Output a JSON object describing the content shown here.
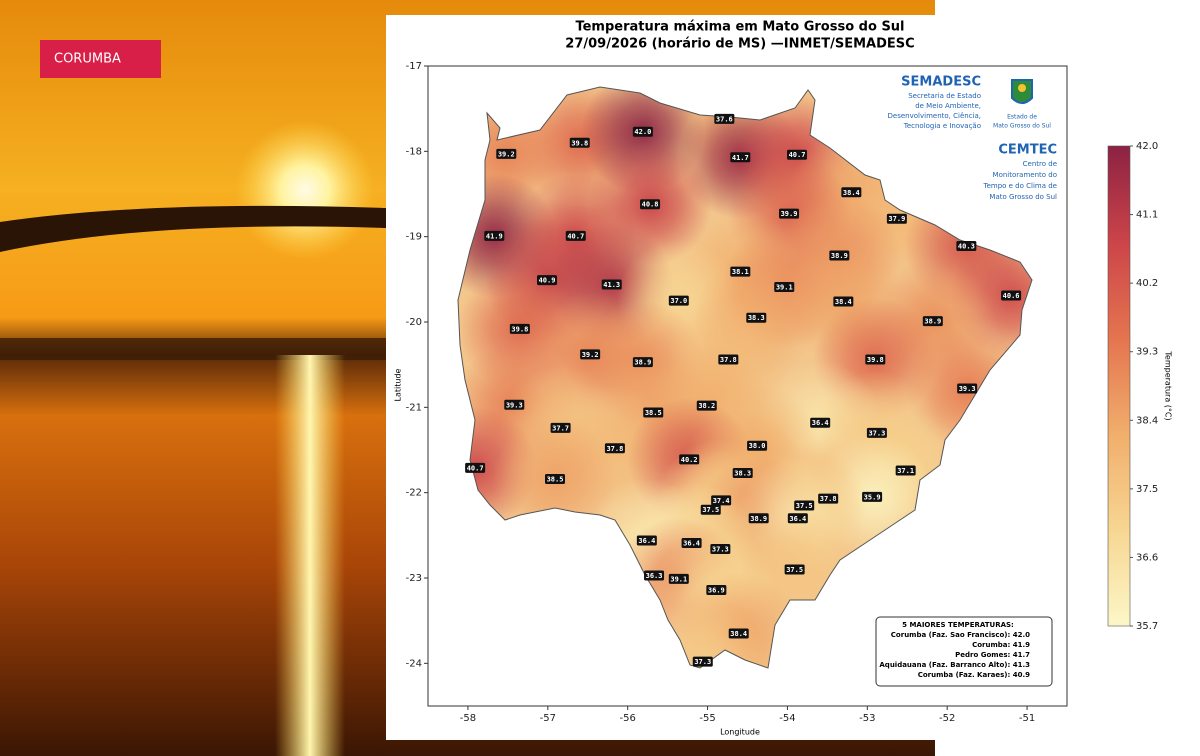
{
  "header": {
    "badge": "CORUMBA"
  },
  "logos": {
    "semadesc": {
      "name": "SEMADESC",
      "lines": [
        "Secretaria de Estado",
        "de Meio Ambiente,",
        "Desenvolvimento, Ciência,",
        "Tecnologia e Inovação"
      ]
    },
    "state": [
      "Estado de",
      "Mato Grosso do Sul"
    ],
    "cemtec": {
      "name": "CEMTEC",
      "lines": [
        "Centro de",
        "Monitoramento do",
        "Tempo e do Clima de",
        "Mato Grosso do Sul"
      ]
    }
  },
  "chart_data": {
    "type": "map",
    "title": "Temperatura máxima em Mato Grosso do Sul",
    "subtitle": "27/09/2026 (horário de MS) —INMET/SEMADESC",
    "x_label": "Longitude",
    "y_label": "Latitude",
    "xlim": [
      -58.5,
      -50.5
    ],
    "ylim": [
      -24.5,
      -17
    ],
    "xticks": [
      -58,
      -57,
      -56,
      -55,
      -54,
      -53,
      -52,
      -51
    ],
    "yticks": [
      -17,
      -18,
      -19,
      -20,
      -21,
      -22,
      -23,
      -24
    ],
    "stations": {
      "x": [
        -54.79,
        -56.6,
        -55.81,
        -57.52,
        -54.59,
        -53.88,
        -53.2,
        -55.72,
        -53.98,
        -52.63,
        -57.67,
        -56.65,
        -51.76,
        -53.35,
        -54.59,
        -57.01,
        -56.2,
        -54.04,
        -51.2,
        -55.36,
        -53.3,
        -54.39,
        -57.35,
        -52.18,
        -56.47,
        -55.81,
        -54.74,
        -52.9,
        -51.75,
        -57.42,
        -55.68,
        -55.01,
        -56.84,
        -53.59,
        -52.88,
        -56.16,
        -54.38,
        -57.91,
        -55.23,
        -54.56,
        -52.52,
        -56.91,
        -53.49,
        -52.94,
        -54.83,
        -54.96,
        -53.79,
        -54.36,
        -53.87,
        -55.76,
        -55.2,
        -54.84,
        -53.91,
        -55.67,
        -55.36,
        -54.89,
        -54.61,
        -55.06
      ],
      "y": [
        -17.62,
        -17.9,
        -17.77,
        -18.03,
        -18.07,
        -18.04,
        -18.48,
        -18.62,
        -18.73,
        -18.79,
        -18.99,
        -18.99,
        -19.11,
        -19.22,
        -19.41,
        -19.51,
        -19.56,
        -19.59,
        -19.69,
        -19.75,
        -19.76,
        -19.95,
        -20.08,
        -19.99,
        -20.38,
        -20.47,
        -20.44,
        -20.44,
        -20.78,
        -20.97,
        -21.06,
        -20.98,
        -21.24,
        -21.18,
        -21.3,
        -21.48,
        -21.45,
        -21.71,
        -21.61,
        -21.77,
        -21.74,
        -21.84,
        -22.07,
        -22.05,
        -22.09,
        -22.2,
        -22.15,
        -22.3,
        -22.3,
        -22.56,
        -22.59,
        -22.66,
        -22.9,
        -22.97,
        -23.01,
        -23.14,
        -23.65,
        -23.98
      ],
      "values": [
        37.6,
        39.8,
        42,
        39.2,
        41.7,
        40.7,
        38.4,
        40.8,
        39.9,
        37.9,
        41.9,
        40.7,
        40.3,
        38.9,
        38.1,
        40.9,
        41.3,
        39.1,
        40.6,
        37,
        38.4,
        38.3,
        39.8,
        38.9,
        39.2,
        38.9,
        37.8,
        39.8,
        39.3,
        39.3,
        38.5,
        38.2,
        37.7,
        36.4,
        37.3,
        37.8,
        38,
        40.7,
        40.2,
        38.3,
        37.1,
        38.5,
        37.8,
        35.9,
        37.4,
        37.5,
        37.5,
        38.9,
        36.4,
        36.4,
        36.4,
        37.3,
        37.5,
        36.3,
        39.1,
        36.9,
        38.4,
        37.3
      ],
      "value_labels": [
        "37.6",
        "39.8",
        "42.0",
        "39.2",
        "41.7",
        "40.7",
        "38.4",
        "40.8",
        "39.9",
        "37.9",
        "41.9",
        "40.7",
        "40.3",
        "38.9",
        "38.1",
        "40.9",
        "41.3",
        "39.1",
        "40.6",
        "37.0",
        "38.4",
        "38.3",
        "39.8",
        "38.9",
        "39.2",
        "38.9",
        "37.8",
        "39.8",
        "39.3",
        "39.3",
        "38.5",
        "38.2",
        "37.7",
        "36.4",
        "37.3",
        "37.8",
        "38.0",
        "40.7",
        "40.2",
        "38.3",
        "37.1",
        "38.5",
        "37.8",
        "35.9",
        "37.4",
        "37.5",
        "37.5",
        "38.9",
        "36.4",
        "36.4",
        "36.4",
        "37.3",
        "37.5",
        "36.3",
        "39.1",
        "36.9",
        "38.4",
        "37.3"
      ]
    },
    "colorbar": {
      "label": "Temperatura (°C)",
      "clim": [
        35.7,
        42
      ],
      "ticks": [
        {
          "value": 42,
          "label": "42.0"
        },
        41.1,
        40.2,
        39.3,
        38.4,
        37.5,
        36.6,
        35.7
      ],
      "colormap": [
        "#fcf7c8",
        "#f7d692",
        "#f1ae6c",
        "#e4744f",
        "#cc4449",
        "#8c2243"
      ]
    },
    "top5": {
      "title": "5 MAIORES TEMPERATURAS:",
      "rows": [
        "Corumba (Faz. Sao Francisco): 42.0",
        "Corumba: 41.9",
        "Pedro Gomes: 41.7",
        "Aquidauana (Faz. Barranco Alto): 41.3",
        "Corumba (Faz. Karaes): 40.9"
      ]
    }
  }
}
